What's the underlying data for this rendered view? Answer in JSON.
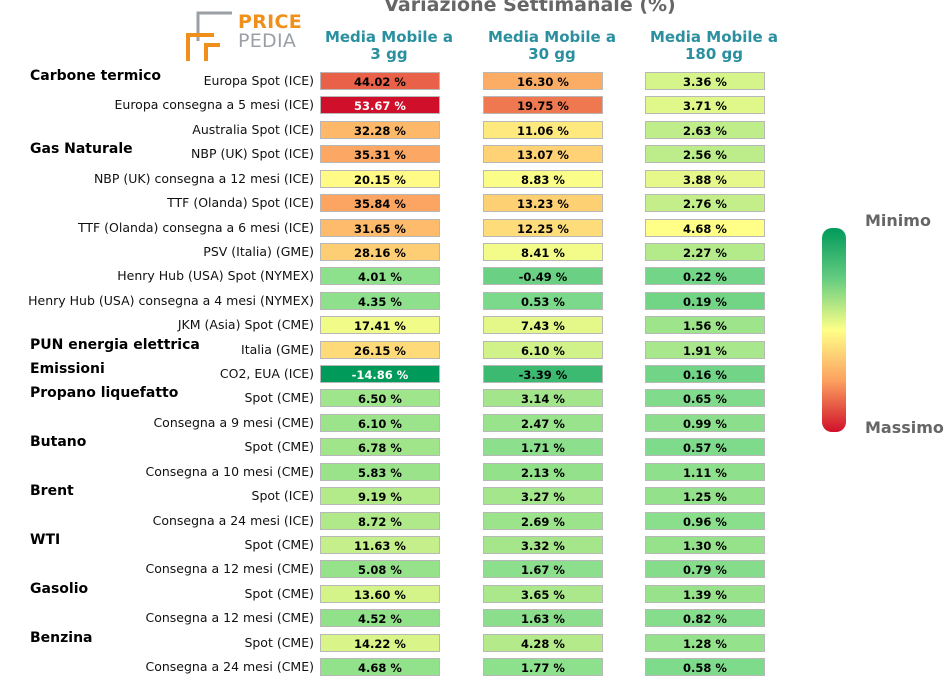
{
  "title": "Variazione Settimanale (%)",
  "logo": {
    "line1": "PRICE",
    "line2": "PEDIA"
  },
  "legend": {
    "min_label": "Minimo",
    "max_label": "Massimo"
  },
  "colors": {
    "accent": "#2a8f9f",
    "title": "#666666",
    "logo_orange": "#f0901a",
    "logo_gray": "#9aa0a6"
  },
  "chart_data": {
    "type": "table",
    "columns": [
      "Media Mobile a 3 gg",
      "Media Mobile a 30 gg",
      "Media Mobile a 180 gg"
    ],
    "column_headers": [
      {
        "line1": "Media Mobile a",
        "line2": "3 gg"
      },
      {
        "line1": "Media Mobile a",
        "line2": "30 gg"
      },
      {
        "line1": "Media Mobile a",
        "line2": "180 gg"
      }
    ],
    "groups": [
      {
        "name": "Carbone termico",
        "rows": [
          {
            "label": "Europa Spot (ICE)",
            "values": [
              44.02,
              16.3,
              3.36
            ]
          },
          {
            "label": "Europa consegna a 5 mesi (ICE)",
            "values": [
              53.67,
              19.75,
              3.71
            ]
          },
          {
            "label": "Australia Spot (ICE)",
            "values": [
              32.28,
              11.06,
              2.63
            ]
          }
        ]
      },
      {
        "name": "Gas Naturale",
        "rows": [
          {
            "label": "NBP (UK) Spot (ICE)",
            "values": [
              35.31,
              13.07,
              2.56
            ]
          },
          {
            "label": "NBP (UK) consegna a 12 mesi (ICE)",
            "values": [
              20.15,
              8.83,
              3.88
            ]
          },
          {
            "label": "TTF (Olanda) Spot (ICE)",
            "values": [
              35.84,
              13.23,
              2.76
            ]
          },
          {
            "label": "TTF (Olanda) consegna a 6 mesi (ICE)",
            "values": [
              31.65,
              12.25,
              4.68
            ]
          },
          {
            "label": "PSV (Italia) (GME)",
            "values": [
              28.16,
              8.41,
              2.27
            ]
          },
          {
            "label": "Henry Hub (USA) Spot (NYMEX)",
            "values": [
              4.01,
              -0.49,
              0.22
            ]
          },
          {
            "label": "Henry Hub (USA) consegna a 4 mesi (NYMEX)",
            "values": [
              4.35,
              0.53,
              0.19
            ]
          },
          {
            "label": "JKM (Asia) Spot (CME)",
            "values": [
              17.41,
              7.43,
              1.56
            ]
          }
        ]
      },
      {
        "name": "PUN energia elettrica",
        "rows": [
          {
            "label": "Italia (GME)",
            "values": [
              26.15,
              6.1,
              1.91
            ]
          }
        ]
      },
      {
        "name": "Emissioni",
        "rows": [
          {
            "label": "CO2, EUA (ICE)",
            "values": [
              -14.86,
              -3.39,
              0.16
            ]
          }
        ]
      },
      {
        "name": "Propano liquefatto",
        "rows": [
          {
            "label": "Spot (CME)",
            "values": [
              6.5,
              3.14,
              0.65
            ]
          },
          {
            "label": "Consegna a 9 mesi (CME)",
            "values": [
              6.1,
              2.47,
              0.99
            ]
          }
        ]
      },
      {
        "name": "Butano",
        "rows": [
          {
            "label": "Spot (CME)",
            "values": [
              6.78,
              1.71,
              0.57
            ]
          },
          {
            "label": "Consegna a 10 mesi (CME)",
            "values": [
              5.83,
              2.13,
              1.11
            ]
          }
        ]
      },
      {
        "name": "Brent",
        "rows": [
          {
            "label": "Spot (ICE)",
            "values": [
              9.19,
              3.27,
              1.25
            ]
          },
          {
            "label": "Consegna a 24 mesi (ICE)",
            "values": [
              8.72,
              2.69,
              0.96
            ]
          }
        ]
      },
      {
        "name": "WTI",
        "rows": [
          {
            "label": "Spot (CME)",
            "values": [
              11.63,
              3.32,
              1.3
            ]
          },
          {
            "label": "Consegna a 12 mesi (CME)",
            "values": [
              5.08,
              1.67,
              0.79
            ]
          }
        ]
      },
      {
        "name": "Gasolio",
        "rows": [
          {
            "label": "Spot (CME)",
            "values": [
              13.6,
              3.65,
              1.39
            ]
          },
          {
            "label": "Consegna a 12 mesi (CME)",
            "values": [
              4.52,
              1.63,
              0.82
            ]
          }
        ]
      },
      {
        "name": "Benzina",
        "rows": [
          {
            "label": "Spot (CME)",
            "values": [
              14.22,
              4.28,
              1.28
            ]
          },
          {
            "label": "Consegna a 24 mesi (CME)",
            "values": [
              4.68,
              1.77,
              0.58
            ]
          }
        ]
      }
    ]
  }
}
